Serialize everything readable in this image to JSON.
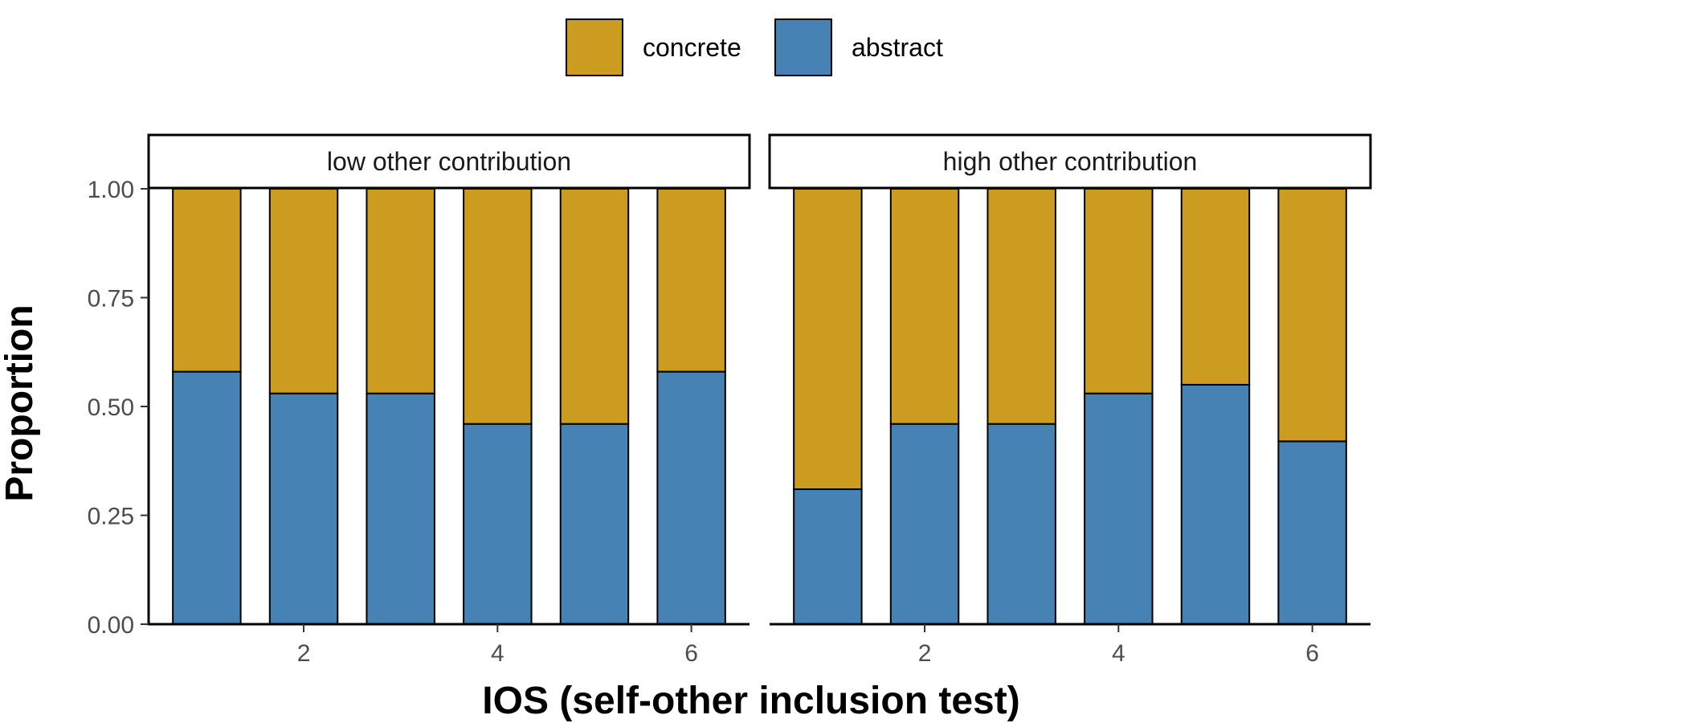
{
  "chart_data": {
    "type": "bar",
    "stacked": true,
    "xlabel": "IOS (self-other inclusion test)",
    "ylabel": "Proportion",
    "ylim": [
      0,
      1
    ],
    "yticks": [
      "0.00",
      "0.25",
      "0.50",
      "0.75",
      "1.00"
    ],
    "xticks": [
      "2",
      "4",
      "6"
    ],
    "x": [
      1,
      2,
      3,
      4,
      5,
      6
    ],
    "legend": {
      "position": "top",
      "entries": [
        {
          "name": "concrete",
          "color": "#CC9C20"
        },
        {
          "name": "abstract",
          "color": "#4682B4"
        }
      ]
    },
    "facets": [
      {
        "label": "low other contribution",
        "series": [
          {
            "name": "abstract",
            "values": [
              0.58,
              0.53,
              0.53,
              0.46,
              0.46,
              0.58
            ]
          },
          {
            "name": "concrete",
            "values": [
              0.42,
              0.47,
              0.47,
              0.54,
              0.54,
              0.42
            ]
          }
        ]
      },
      {
        "label": "high other contribution",
        "series": [
          {
            "name": "abstract",
            "values": [
              0.31,
              0.46,
              0.46,
              0.53,
              0.55,
              0.42
            ]
          },
          {
            "name": "concrete",
            "values": [
              0.69,
              0.54,
              0.54,
              0.47,
              0.45,
              0.58
            ]
          }
        ]
      }
    ],
    "grid": false
  }
}
